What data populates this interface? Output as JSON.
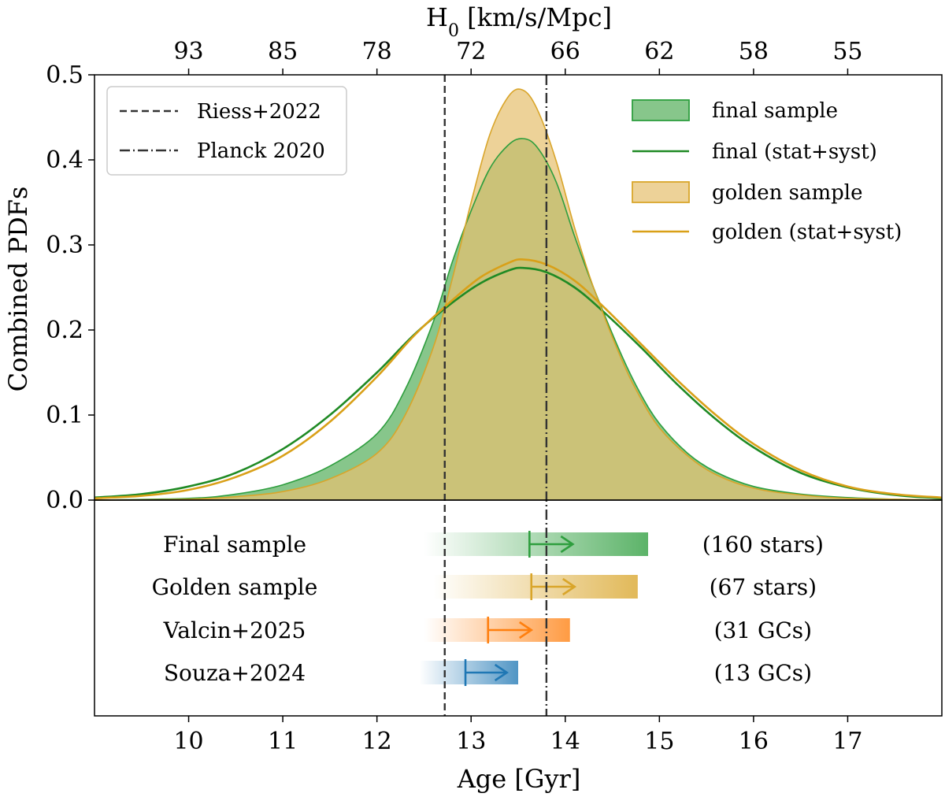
{
  "chart_data": {
    "type": "area",
    "top_axis": {
      "label_main": "H",
      "label_sub": "0",
      "label_rest": " [km/s/Mpc]",
      "ticks": [
        {
          "age": 10,
          "label": "93"
        },
        {
          "age": 11,
          "label": "85"
        },
        {
          "age": 12,
          "label": "78"
        },
        {
          "age": 13,
          "label": "72"
        },
        {
          "age": 14,
          "label": "66"
        },
        {
          "age": 15,
          "label": "62"
        },
        {
          "age": 16,
          "label": "58"
        },
        {
          "age": 17,
          "label": "55"
        }
      ]
    },
    "xlabel": "Age [Gyr]",
    "ylabel": "Combined PDFs",
    "xlim": [
      9.0,
      18.0
    ],
    "ylim": [
      0.0,
      0.5
    ],
    "xticks": [
      10,
      11,
      12,
      13,
      14,
      15,
      16,
      17
    ],
    "yticks": [
      {
        "value": 0.0,
        "label": "0.0"
      },
      {
        "value": 0.1,
        "label": "0.1"
      },
      {
        "value": 0.2,
        "label": "0.2"
      },
      {
        "value": 0.3,
        "label": "0.3"
      },
      {
        "value": 0.4,
        "label": "0.4"
      },
      {
        "value": 0.5,
        "label": "0.5"
      }
    ],
    "series": [
      {
        "name": "final sample",
        "kind": "fill",
        "color": "#2e9e3e",
        "fill": "#59b05e",
        "x": [
          9.0,
          10.0,
          10.5,
          11.0,
          11.5,
          12.0,
          12.3,
          12.6,
          12.8,
          13.0,
          13.2,
          13.4,
          13.55,
          13.7,
          13.9,
          14.1,
          14.3,
          14.6,
          14.8,
          15.0,
          15.3,
          15.6,
          16.0,
          16.5,
          17.0,
          17.5,
          18.0
        ],
        "y": [
          0.0,
          0.002,
          0.007,
          0.018,
          0.04,
          0.078,
          0.13,
          0.21,
          0.28,
          0.34,
          0.39,
          0.418,
          0.425,
          0.415,
          0.375,
          0.31,
          0.25,
          0.17,
          0.125,
          0.09,
          0.055,
          0.033,
          0.016,
          0.007,
          0.003,
          0.001,
          0.0
        ]
      },
      {
        "name": "final (stat+syst)",
        "kind": "line",
        "color": "#1f8a24",
        "x": [
          9.0,
          9.5,
          10.0,
          10.5,
          11.0,
          11.5,
          12.0,
          12.4,
          12.8,
          13.1,
          13.4,
          13.55,
          13.8,
          14.1,
          14.4,
          14.8,
          15.2,
          15.6,
          16.0,
          16.5,
          17.0,
          17.5,
          18.0
        ],
        "y": [
          0.003,
          0.007,
          0.016,
          0.032,
          0.06,
          0.1,
          0.15,
          0.195,
          0.232,
          0.255,
          0.27,
          0.273,
          0.268,
          0.25,
          0.222,
          0.18,
          0.135,
          0.095,
          0.062,
          0.032,
          0.015,
          0.006,
          0.002
        ]
      },
      {
        "name": "golden sample",
        "kind": "fill",
        "color": "#d9a52a",
        "fill": "#e6c070",
        "x": [
          9.0,
          10.0,
          10.5,
          11.0,
          11.5,
          12.0,
          12.3,
          12.6,
          12.8,
          13.0,
          13.2,
          13.4,
          13.55,
          13.7,
          13.9,
          14.1,
          14.3,
          14.6,
          14.8,
          15.0,
          15.3,
          15.6,
          16.0,
          16.5,
          17.0,
          17.5,
          18.0
        ],
        "y": [
          0.0,
          0.001,
          0.004,
          0.01,
          0.025,
          0.055,
          0.1,
          0.18,
          0.26,
          0.35,
          0.43,
          0.475,
          0.482,
          0.46,
          0.4,
          0.32,
          0.25,
          0.165,
          0.12,
          0.085,
          0.052,
          0.03,
          0.014,
          0.006,
          0.002,
          0.001,
          0.0
        ]
      },
      {
        "name": "golden (stat+syst)",
        "kind": "line",
        "color": "#d9a018",
        "x": [
          9.0,
          9.5,
          10.0,
          10.5,
          11.0,
          11.5,
          12.0,
          12.4,
          12.8,
          13.1,
          13.4,
          13.55,
          13.8,
          14.1,
          14.4,
          14.8,
          15.2,
          15.6,
          16.0,
          16.5,
          17.0,
          17.5,
          18.0
        ],
        "y": [
          0.002,
          0.005,
          0.012,
          0.027,
          0.052,
          0.092,
          0.145,
          0.194,
          0.235,
          0.262,
          0.279,
          0.283,
          0.277,
          0.258,
          0.228,
          0.184,
          0.14,
          0.1,
          0.066,
          0.035,
          0.016,
          0.007,
          0.003
        ]
      }
    ],
    "vlines": [
      {
        "name": "Riess+2022",
        "x": 12.72,
        "style": "dashed",
        "color": "#333333"
      },
      {
        "name": "Planck 2020",
        "x": 13.8,
        "style": "dashdot",
        "color": "#333333"
      }
    ],
    "legend_left": [
      "Riess+2022",
      "Planck 2020"
    ],
    "legend_right": [
      "final sample",
      "final (stat+syst)",
      "golden sample",
      "golden (stat+syst)"
    ],
    "lower_rows": [
      {
        "label": "Final sample",
        "count": "(160 stars)",
        "color": "#2e9e3e",
        "fade_start": 12.5,
        "bar_end": 14.88,
        "lower_limit": 13.62,
        "arrow_end": 14.08
      },
      {
        "label": "Golden sample",
        "count": "(67 stars)",
        "color": "#d9a52a",
        "fade_start": 12.6,
        "bar_end": 14.77,
        "lower_limit": 13.64,
        "arrow_end": 14.1
      },
      {
        "label": "Valcin+2025",
        "count": "(31 GCs)",
        "color": "#ff7f0e",
        "fade_start": 12.5,
        "bar_end": 14.05,
        "lower_limit": 13.18,
        "arrow_end": 13.64
      },
      {
        "label": "Souza+2024",
        "count": "(13 GCs)",
        "color": "#1f77b4",
        "fade_start": 12.45,
        "bar_end": 13.5,
        "lower_limit": 12.94,
        "arrow_end": 13.38
      }
    ]
  }
}
